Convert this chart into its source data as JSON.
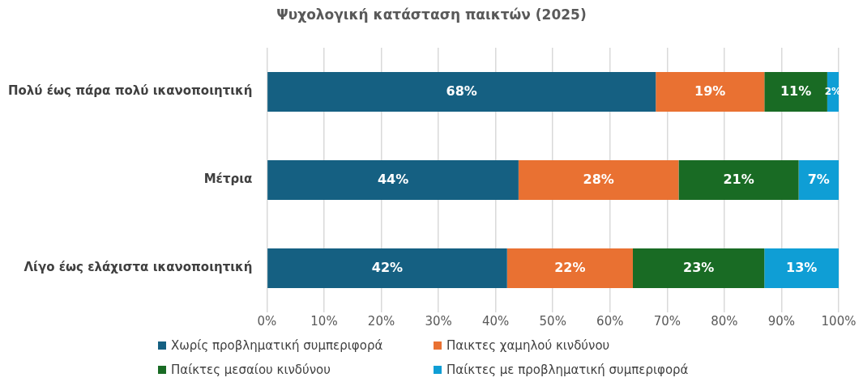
{
  "chart_data": {
    "type": "bar",
    "orientation": "horizontal",
    "stacked": true,
    "title": "Ψυχολογική κατάσταση παικτών (2025)",
    "categories": [
      "Πολύ έως πάρα πολύ ικανοποιητική",
      "Μέτρια",
      "Λίγο έως ελάχιστα ικανοποιητική"
    ],
    "series": [
      {
        "name": "Χωρίς προβληματική συμπεριφορά",
        "color": "#156082",
        "values": [
          68,
          44,
          42
        ],
        "value_labels": [
          "68%",
          "44%",
          "42%"
        ]
      },
      {
        "name": "Παικτες χαμηλού κινδύνου",
        "color": "#e97132",
        "values": [
          19,
          28,
          22
        ],
        "value_labels": [
          "19%",
          "28%",
          "22%"
        ]
      },
      {
        "name": "Παίκτες μεσαίου κινδύνου",
        "color": "#196b24",
        "values": [
          11,
          21,
          23
        ],
        "value_labels": [
          "11%",
          "21%",
          "23%"
        ]
      },
      {
        "name": "Παίκτες με προβληματική συμπεριφορά",
        "color": "#0f9ed5",
        "values": [
          2,
          7,
          13
        ],
        "value_labels": [
          "2%",
          "7%",
          "13%"
        ]
      }
    ],
    "xlim": [
      0,
      100
    ],
    "xticks": [
      {
        "value": 0,
        "label": "0%"
      },
      {
        "value": 10,
        "label": "10%"
      },
      {
        "value": 20,
        "label": "20%"
      },
      {
        "value": 30,
        "label": "30%"
      },
      {
        "value": 40,
        "label": "40%"
      },
      {
        "value": 50,
        "label": "50%"
      },
      {
        "value": 60,
        "label": "60%"
      },
      {
        "value": 70,
        "label": "70%"
      },
      {
        "value": 80,
        "label": "80%"
      },
      {
        "value": 90,
        "label": "90%"
      },
      {
        "value": 100,
        "label": "100%"
      }
    ],
    "grid": "x",
    "legend": "bottom"
  }
}
